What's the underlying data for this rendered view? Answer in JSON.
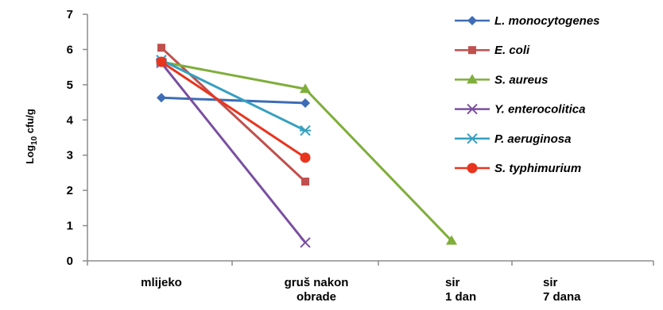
{
  "chart_data": {
    "type": "line",
    "title": "",
    "xlabel": "",
    "ylabel_base": "Log",
    "ylabel_sub": "10",
    "ylabel_unit": " cfu/g",
    "ylim": [
      0,
      7
    ],
    "yticks": [
      "0",
      "1",
      "2",
      "3",
      "4",
      "5",
      "6",
      "7"
    ],
    "categories": [
      [
        "mlijeko"
      ],
      [
        "gruš nakon",
        "obrade"
      ],
      [
        "sir",
        "1 dan"
      ],
      [
        "sir",
        "7 dana"
      ]
    ],
    "legend_position": "top-right",
    "grid": false,
    "series": [
      {
        "name": "L. monocytogenes",
        "color": "#3e6db5",
        "marker": "diamond",
        "values": [
          4.63,
          4.48,
          null,
          null
        ]
      },
      {
        "name": "E. coli",
        "color": "#c0504d",
        "marker": "square",
        "values": [
          6.05,
          2.25,
          null,
          null
        ]
      },
      {
        "name": "S. aureus",
        "color": "#7fae3b",
        "marker": "triangle",
        "values": [
          5.65,
          4.88,
          0.57,
          null
        ]
      },
      {
        "name": "Y. enterocolitica",
        "color": "#7a4fa0",
        "marker": "x",
        "values": [
          5.62,
          0.52,
          null,
          null
        ]
      },
      {
        "name": "P. aeruginosa",
        "color": "#35a0c0",
        "marker": "asterisk",
        "values": [
          5.7,
          3.7,
          null,
          null
        ]
      },
      {
        "name": "S. typhimurium",
        "color": "#e8351f",
        "marker": "circle",
        "values": [
          5.65,
          2.93,
          null,
          null
        ]
      }
    ]
  }
}
